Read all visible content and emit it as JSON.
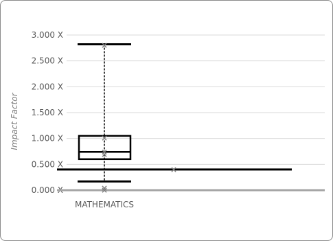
{
  "chart_data": {
    "type": "box",
    "ylabel": "Impact Factor",
    "categories": [
      "MATHEMATICS"
    ],
    "y_ticks": [
      "0.000 X",
      "0.500 X",
      "1.000 X",
      "1.500 X",
      "2.000 X",
      "2.500 X",
      "3.000 X"
    ],
    "y_tick_values": [
      0,
      0.5,
      1.0,
      1.5,
      2.0,
      2.5,
      3.0
    ],
    "ylim": [
      0,
      3.0
    ],
    "grid": true,
    "box": {
      "category": "MATHEMATICS",
      "whisker_low": 0.17,
      "q1": 0.6,
      "median": 0.74,
      "q3": 1.05,
      "whisker_high": 2.82
    },
    "points": [
      {
        "category": "MATHEMATICS",
        "value": 2.8
      },
      {
        "category": "MATHEMATICS",
        "value": 1.01
      },
      {
        "category": "MATHEMATICS",
        "value": 0.74
      },
      {
        "category": "MATHEMATICS",
        "value": 0.69
      },
      {
        "category": "MATHEMATICS",
        "value": 0.04
      },
      {
        "category": "MATHEMATICS",
        "value": 0.0
      }
    ],
    "reference_line": {
      "value": 0.4
    },
    "reference_marker_value": 0.4,
    "colors": {
      "box": "#000000",
      "marker": "#7f7f7f",
      "axis": "#a6a6a6",
      "grid": "#d9d9d9"
    }
  }
}
